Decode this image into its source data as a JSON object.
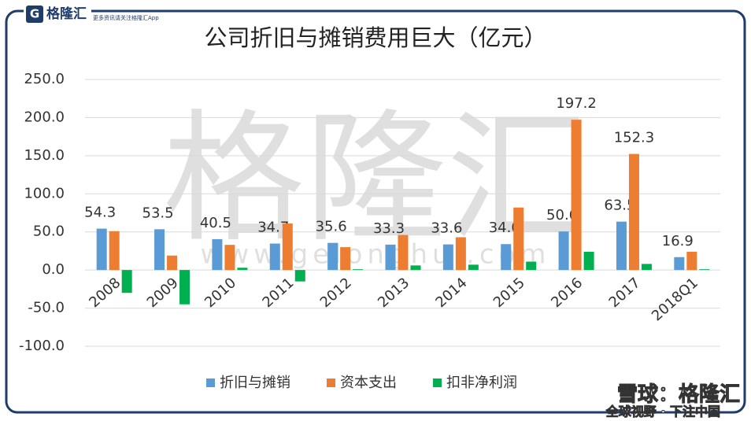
{
  "chart_data": {
    "type": "bar",
    "title": "公司折旧与摊销费用巨大（亿元）",
    "categories": [
      "2008",
      "2009",
      "2010",
      "2011",
      "2012",
      "2013",
      "2014",
      "2015",
      "2016",
      "2017",
      "2018Q1"
    ],
    "series": [
      {
        "name": "折旧与摊销",
        "color": "#5b9bd5",
        "values": [
          54.3,
          53.5,
          40.5,
          34.7,
          35.6,
          33.3,
          33.6,
          34.0,
          50.6,
          63.5,
          16.9
        ],
        "value_labels": [
          "54.3",
          "53.5",
          "40.5",
          "34.7",
          "35.6",
          "33.3",
          "33.6",
          "34.0",
          "50.6",
          "63.5",
          "16.9"
        ]
      },
      {
        "name": "资本支出",
        "color": "#ed7d31",
        "values": [
          51,
          19,
          33,
          61,
          30,
          46,
          43,
          82,
          197.2,
          152.3,
          24
        ],
        "value_labels": [
          null,
          null,
          null,
          null,
          null,
          null,
          null,
          null,
          "197.2",
          "152.3",
          null
        ]
      },
      {
        "name": "扣非净利润",
        "color": "#00b050",
        "values": [
          -30,
          -45,
          3,
          -15,
          1,
          6,
          7,
          11,
          24,
          8,
          1
        ]
      }
    ],
    "ylim": [
      -100,
      250
    ],
    "yticks": [
      {
        "value": -100,
        "label": "-100.0"
      },
      {
        "value": -50,
        "label": "-50.0"
      },
      {
        "value": 0,
        "label": "0.0"
      },
      {
        "value": 50,
        "label": "50.0"
      },
      {
        "value": 100,
        "label": "100.0"
      },
      {
        "value": 150,
        "label": "150.0"
      },
      {
        "value": 200,
        "label": "200.0"
      },
      {
        "value": 250,
        "label": "250.0"
      }
    ],
    "grid": true,
    "legend": "bottom"
  },
  "branding": {
    "logo": "格隆汇",
    "slogan": "更多资讯请关注格隆汇App",
    "watermark": "格隆汇",
    "watermark_url": "www.gelonghui.com",
    "footer_source": "雪球：格隆汇",
    "footer_motto": "全球视野 · 下注中国"
  }
}
